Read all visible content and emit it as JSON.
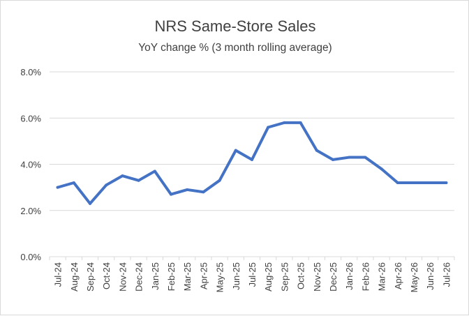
{
  "chart_data": {
    "type": "line",
    "title": "NRS Same-Store Sales",
    "subtitle": "YoY change % (3 month rolling average)",
    "xlabel": "",
    "ylabel": "",
    "categories": [
      "Jul-24",
      "Aug-24",
      "Sep-24",
      "Oct-24",
      "Nov-24",
      "Dec-24",
      "Jan-25",
      "Feb-25",
      "Mar-25",
      "Apr-25",
      "May-25",
      "Jun-25",
      "Jul-25",
      "Aug-25",
      "Sep-25",
      "Oct-25",
      "Nov-25",
      "Dec-25",
      "Jan-26",
      "Feb-26",
      "Mar-26",
      "Apr-26",
      "May-26",
      "Jun-26",
      "Jul-26"
    ],
    "series": [
      {
        "values": [
          3.0,
          3.2,
          2.3,
          3.1,
          3.5,
          3.3,
          3.7,
          2.7,
          2.9,
          2.8,
          3.3,
          4.6,
          4.2,
          5.6,
          5.8,
          5.8,
          4.6,
          4.2,
          4.3,
          4.3,
          3.8,
          3.2,
          3.2,
          3.2,
          3.2
        ],
        "color": "#4472c4"
      }
    ],
    "ylim": [
      0,
      8
    ],
    "y_ticks": [
      "0.0%",
      "2.0%",
      "4.0%",
      "6.0%",
      "8.0%"
    ],
    "y_tick_values": [
      0,
      2,
      4,
      6,
      8
    ],
    "grid": true,
    "legend": "none",
    "colors": {
      "line": "#4472c4",
      "grid": "#d9d9d9",
      "text": "#404040",
      "border": "#d9d9d9"
    }
  }
}
